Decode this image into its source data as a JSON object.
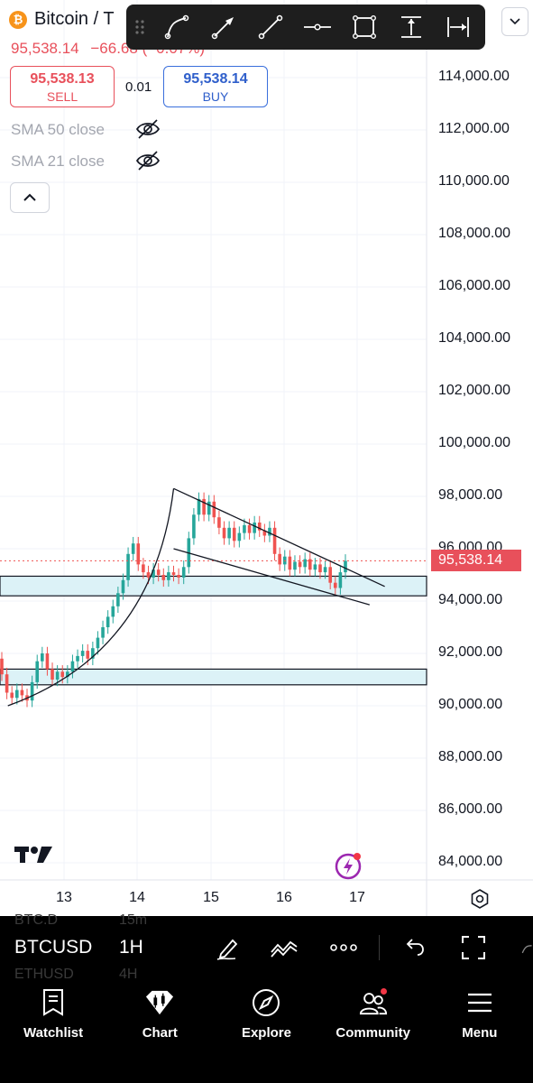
{
  "header": {
    "symbol_title": "Bitcoin / T",
    "last_price": "95,538.14",
    "change_text": "−66.68 (−0.07%)",
    "logo_letter": "₿"
  },
  "trade": {
    "sell_price": "95,538.13",
    "sell_label": "SELL",
    "spread": "0.01",
    "buy_price": "95,538.14",
    "buy_label": "BUY"
  },
  "indicators": [
    {
      "label": "SMA 50 close",
      "visible": false
    },
    {
      "label": "SMA 21 close",
      "visible": false
    }
  ],
  "drawing_toolbar": {
    "tools": [
      "curve-tool",
      "arrow-tool",
      "trend-line-tool",
      "horizontal-ray-tool",
      "rectangle-tool",
      "price-range-tool",
      "date-range-tool"
    ]
  },
  "price_axis": {
    "labels": [
      "114,000.00",
      "112,000.00",
      "110,000.00",
      "108,000.00",
      "106,000.00",
      "104,000.00",
      "102,000.00",
      "100,000.00",
      "98,000.00",
      "96,000.00",
      "94,000.00",
      "92,000.00",
      "90,000.00",
      "88,000.00",
      "86,000.00",
      "84,000.00"
    ],
    "current_price_label": "95,538.14"
  },
  "time_axis": {
    "labels": [
      "13",
      "14",
      "15",
      "16",
      "17"
    ]
  },
  "chart_data": {
    "type": "candlestick",
    "symbol": "BTCUSD",
    "interval": "1H",
    "ylim": [
      83500,
      115500
    ],
    "current_price": 95538.14,
    "candles": [
      {
        "o": 91800,
        "c": 91200
      },
      {
        "o": 91200,
        "c": 90500
      },
      {
        "o": 90500,
        "c": 90300
      },
      {
        "o": 90300,
        "c": 90600
      },
      {
        "o": 90600,
        "c": 90400
      },
      {
        "o": 90400,
        "c": 90200
      },
      {
        "o": 90200,
        "c": 90900
      },
      {
        "o": 90900,
        "c": 91700
      },
      {
        "o": 91700,
        "c": 92000
      },
      {
        "o": 92000,
        "c": 91400
      },
      {
        "o": 91400,
        "c": 91000
      },
      {
        "o": 91000,
        "c": 91300
      },
      {
        "o": 91300,
        "c": 91100
      },
      {
        "o": 91100,
        "c": 91300
      },
      {
        "o": 91300,
        "c": 91700
      },
      {
        "o": 91700,
        "c": 91900
      },
      {
        "o": 91900,
        "c": 92100
      },
      {
        "o": 92100,
        "c": 91800
      },
      {
        "o": 91800,
        "c": 92200
      },
      {
        "o": 92200,
        "c": 92600
      },
      {
        "o": 92600,
        "c": 93000
      },
      {
        "o": 93000,
        "c": 93400
      },
      {
        "o": 93400,
        "c": 93800
      },
      {
        "o": 93800,
        "c": 94300
      },
      {
        "o": 94300,
        "c": 94800
      },
      {
        "o": 94800,
        "c": 95800
      },
      {
        "o": 95800,
        "c": 96200
      },
      {
        "o": 96200,
        "c": 95400
      },
      {
        "o": 95400,
        "c": 95100
      },
      {
        "o": 95100,
        "c": 94900
      },
      {
        "o": 94900,
        "c": 95200
      },
      {
        "o": 95200,
        "c": 95000
      },
      {
        "o": 95000,
        "c": 94800
      },
      {
        "o": 94800,
        "c": 95100
      },
      {
        "o": 95100,
        "c": 95000
      },
      {
        "o": 95000,
        "c": 94900
      },
      {
        "o": 94900,
        "c": 95300
      },
      {
        "o": 95300,
        "c": 96400
      },
      {
        "o": 96400,
        "c": 97300
      },
      {
        "o": 97300,
        "c": 97900
      },
      {
        "o": 97900,
        "c": 97300
      },
      {
        "o": 97300,
        "c": 97800
      },
      {
        "o": 97800,
        "c": 97200
      },
      {
        "o": 97200,
        "c": 96800
      },
      {
        "o": 96800,
        "c": 96400
      },
      {
        "o": 96400,
        "c": 96800
      },
      {
        "o": 96800,
        "c": 96300
      },
      {
        "o": 96300,
        "c": 96600
      },
      {
        "o": 96600,
        "c": 96900
      },
      {
        "o": 96900,
        "c": 96600
      },
      {
        "o": 96600,
        "c": 97000
      },
      {
        "o": 97000,
        "c": 96700
      },
      {
        "o": 96700,
        "c": 96500
      },
      {
        "o": 96500,
        "c": 96800
      },
      {
        "o": 96800,
        "c": 95800
      },
      {
        "o": 95800,
        "c": 95400
      },
      {
        "o": 95400,
        "c": 95700
      },
      {
        "o": 95700,
        "c": 95200
      },
      {
        "o": 95200,
        "c": 95500
      },
      {
        "o": 95500,
        "c": 95300
      },
      {
        "o": 95300,
        "c": 95600
      },
      {
        "o": 95600,
        "c": 95200
      },
      {
        "o": 95200,
        "c": 95400
      },
      {
        "o": 95400,
        "c": 95100
      },
      {
        "o": 95100,
        "c": 95300
      },
      {
        "o": 95300,
        "c": 94700
      },
      {
        "o": 94700,
        "c": 94500
      },
      {
        "o": 94500,
        "c": 95100
      },
      {
        "o": 95100,
        "c": 95538
      }
    ],
    "support_zones": [
      {
        "low": 94200,
        "high": 94950
      },
      {
        "low": 90800,
        "high": 91400
      }
    ],
    "trend_lines": [
      {
        "from_index": 0,
        "from_price": 90000,
        "to_index": 34,
        "to_price": 98300,
        "kind": "curve"
      },
      {
        "from_index": 34,
        "from_price": 98300,
        "to_index": 69,
        "to_price": 94800,
        "kind": "line"
      },
      {
        "from_index": 34,
        "from_price": 96000,
        "to_index": 66,
        "to_price": 94100,
        "kind": "line"
      }
    ]
  },
  "symbol_toolbar": {
    "symbol": "BTCUSD",
    "interval": "1H",
    "ghost_items": [
      {
        "symbol": "BTC.D",
        "interval": "15m"
      },
      {
        "symbol": "ETHUSD",
        "interval": "4H"
      }
    ]
  },
  "bottom_nav": {
    "items": [
      {
        "label": "Watchlist",
        "icon": "watchlist-icon"
      },
      {
        "label": "Chart",
        "icon": "chart-icon"
      },
      {
        "label": "Explore",
        "icon": "compass-icon"
      },
      {
        "label": "Community",
        "icon": "community-icon",
        "badge": true
      },
      {
        "label": "Menu",
        "icon": "menu-icon"
      }
    ]
  }
}
